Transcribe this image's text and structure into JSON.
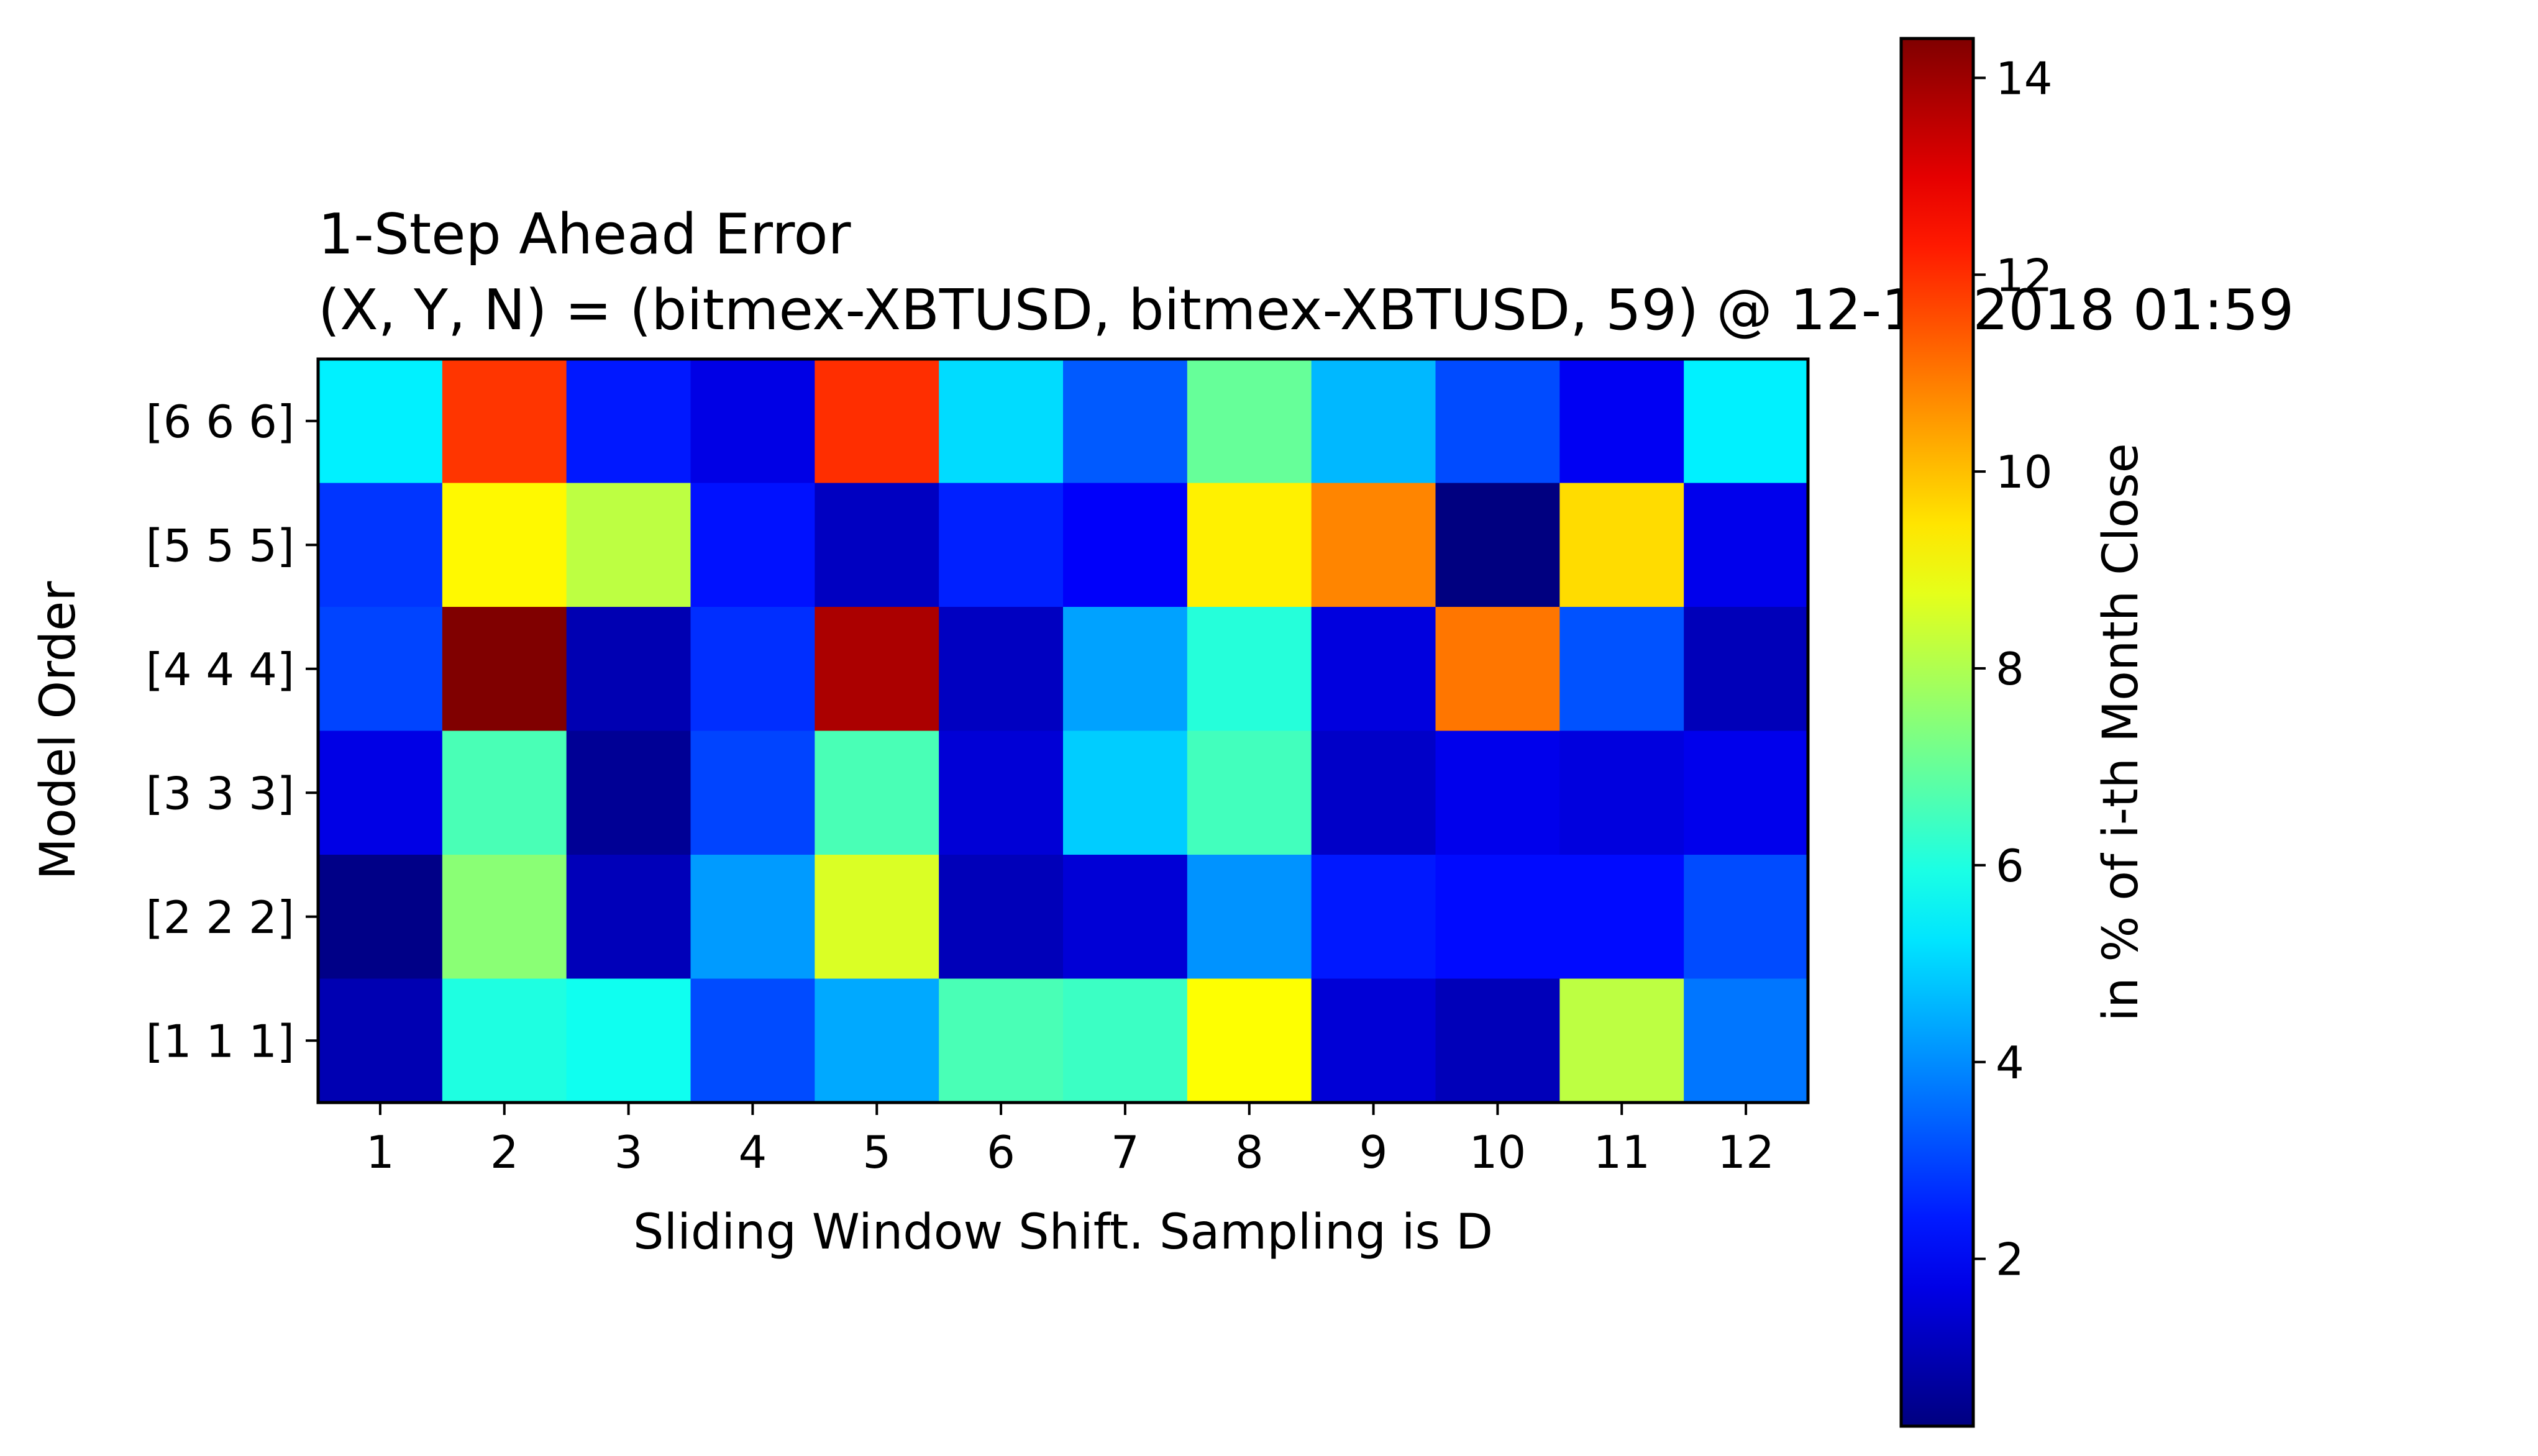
{
  "chart_data": {
    "type": "heatmap",
    "title_line1": "1-Step Ahead Error",
    "title_line2": "(X, Y, N) = (bitmex-XBTUSD, bitmex-XBTUSD, 59) @ 12-14-2018 01:59",
    "xlabel": "Sliding Window Shift. Sampling is D",
    "ylabel": "Model Order",
    "colorbar_label": "in % of i-th Month Close",
    "colormap": "jet",
    "x_categories": [
      "1",
      "2",
      "3",
      "4",
      "5",
      "6",
      "7",
      "8",
      "9",
      "10",
      "11",
      "12"
    ],
    "y_categories": [
      "[6 6 6]",
      "[5 5 5]",
      "[4 4 4]",
      "[3 3 3]",
      "[2 2 2]",
      "[1 1 1]"
    ],
    "values": [
      [
        5.4,
        11.9,
        2.4,
        1.7,
        12.0,
        5.1,
        3.3,
        7.0,
        4.6,
        3.1,
        1.9,
        5.4
      ],
      [
        2.8,
        9.2,
        8.2,
        2.3,
        1.2,
        2.5,
        2.0,
        9.3,
        10.8,
        0.3,
        9.6,
        1.8
      ],
      [
        3.0,
        14.4,
        1.0,
        2.7,
        13.8,
        1.2,
        4.3,
        6.1,
        1.6,
        11.0,
        3.2,
        1.1
      ],
      [
        1.7,
        6.6,
        0.6,
        3.0,
        6.6,
        1.5,
        4.9,
        6.5,
        1.3,
        1.8,
        1.6,
        1.8
      ],
      [
        0.4,
        7.5,
        1.1,
        4.2,
        8.6,
        1.1,
        1.5,
        4.1,
        2.4,
        2.2,
        2.2,
        3.1
      ],
      [
        1.0,
        6.0,
        5.8,
        3.1,
        4.4,
        6.6,
        6.4,
        9.1,
        1.5,
        1.1,
        8.2,
        3.7
      ]
    ],
    "vmin": 0.3,
    "vmax": 14.4,
    "colorbar_ticks": [
      2,
      4,
      6,
      8,
      10,
      12,
      14
    ]
  }
}
